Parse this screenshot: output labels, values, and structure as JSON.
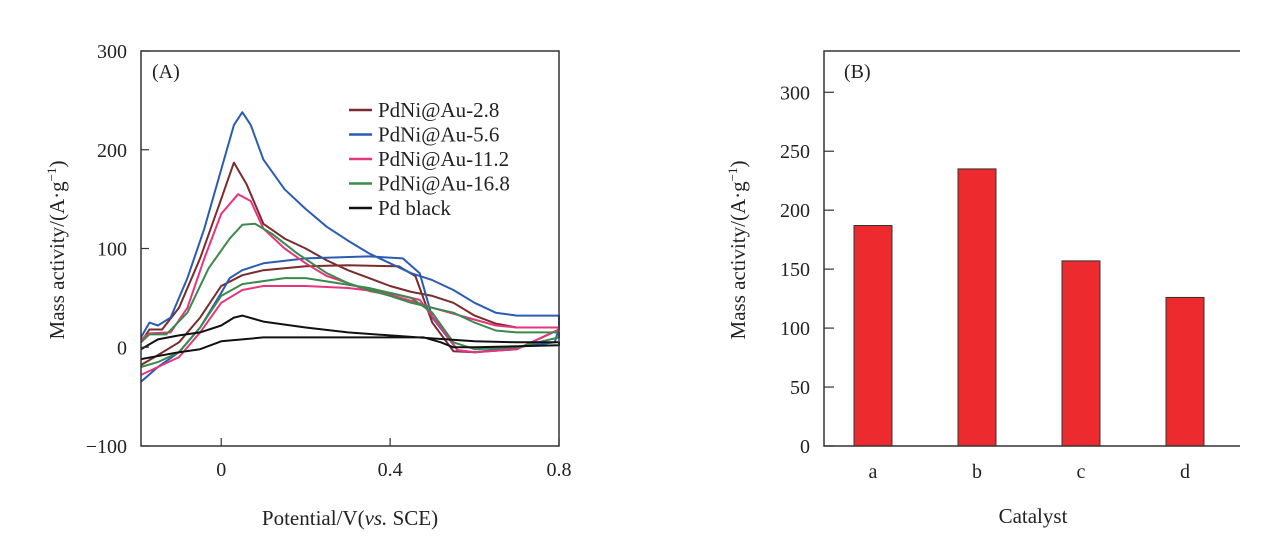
{
  "chart_data": [
    {
      "type": "line",
      "panel_label": "(A)",
      "xlabel": {
        "prefix": "Potential/V(",
        "italic": "vs.",
        "suffix": " SCE)"
      },
      "ylabel": {
        "prefix": "Mass activity/(A·g",
        "sup": "−1",
        "suffix": ")"
      },
      "xlim": [
        -0.19,
        0.8
      ],
      "ylim": [
        -100,
        300
      ],
      "xticks": [
        {
          "v": 0,
          "label": "0"
        },
        {
          "v": 0.4,
          "label": "0.4"
        },
        {
          "v": 0.8,
          "label": "0.8"
        }
      ],
      "yticks": [
        {
          "v": 300,
          "label": "300"
        },
        {
          "v": 200,
          "label": "200"
        },
        {
          "v": 100,
          "label": "100"
        },
        {
          "v": 0,
          "label": "0"
        },
        {
          "v": -100,
          "label": "−100"
        }
      ],
      "grid": false,
      "legend": "top-right",
      "series": [
        {
          "name": "PdNi@Au-2.8",
          "color": "#7a2b2b",
          "points": [
            [
              -0.19,
              5
            ],
            [
              -0.17,
              18
            ],
            [
              -0.14,
              18
            ],
            [
              -0.1,
              40
            ],
            [
              -0.05,
              90
            ],
            [
              0,
              150
            ],
            [
              0.03,
              187
            ],
            [
              0.06,
              165
            ],
            [
              0.1,
              125
            ],
            [
              0.15,
              110
            ],
            [
              0.2,
              100
            ],
            [
              0.25,
              88
            ],
            [
              0.3,
              78
            ],
            [
              0.35,
              70
            ],
            [
              0.4,
              62
            ],
            [
              0.45,
              56
            ],
            [
              0.5,
              52
            ],
            [
              0.55,
              45
            ],
            [
              0.6,
              32
            ],
            [
              0.65,
              24
            ],
            [
              0.7,
              20
            ],
            [
              0.8,
              20
            ],
            [
              0.8,
              18
            ],
            [
              0.7,
              -2
            ],
            [
              0.6,
              -5
            ],
            [
              0.55,
              -4
            ],
            [
              0.5,
              25
            ],
            [
              0.46,
              72
            ],
            [
              0.42,
              82
            ],
            [
              0.3,
              83
            ],
            [
              0.2,
              82
            ],
            [
              0.1,
              78
            ],
            [
              0.05,
              73
            ],
            [
              0,
              62
            ],
            [
              -0.05,
              30
            ],
            [
              -0.1,
              5
            ],
            [
              -0.15,
              -8
            ],
            [
              -0.19,
              -18
            ]
          ]
        },
        {
          "name": "PdNi@Au-5.6",
          "color": "#2b5cb3",
          "points": [
            [
              -0.19,
              10
            ],
            [
              -0.17,
              25
            ],
            [
              -0.15,
              22
            ],
            [
              -0.12,
              30
            ],
            [
              -0.08,
              70
            ],
            [
              -0.04,
              120
            ],
            [
              0,
              180
            ],
            [
              0.03,
              225
            ],
            [
              0.05,
              238
            ],
            [
              0.07,
              225
            ],
            [
              0.1,
              190
            ],
            [
              0.15,
              160
            ],
            [
              0.2,
              140
            ],
            [
              0.25,
              122
            ],
            [
              0.3,
              108
            ],
            [
              0.35,
              95
            ],
            [
              0.4,
              85
            ],
            [
              0.45,
              75
            ],
            [
              0.5,
              68
            ],
            [
              0.55,
              58
            ],
            [
              0.6,
              45
            ],
            [
              0.65,
              35
            ],
            [
              0.7,
              32
            ],
            [
              0.8,
              32
            ],
            [
              0.8,
              20
            ],
            [
              0.79,
              5
            ],
            [
              0.7,
              0
            ],
            [
              0.6,
              -5
            ],
            [
              0.56,
              -3
            ],
            [
              0.5,
              30
            ],
            [
              0.47,
              75
            ],
            [
              0.43,
              90
            ],
            [
              0.35,
              92
            ],
            [
              0.2,
              90
            ],
            [
              0.1,
              85
            ],
            [
              0.05,
              78
            ],
            [
              0.02,
              70
            ],
            [
              0,
              55
            ],
            [
              -0.05,
              20
            ],
            [
              -0.1,
              -5
            ],
            [
              -0.15,
              -20
            ],
            [
              -0.19,
              -35
            ]
          ]
        },
        {
          "name": "PdNi@Au-11.2",
          "color": "#e8347e",
          "points": [
            [
              -0.19,
              8
            ],
            [
              -0.17,
              14
            ],
            [
              -0.12,
              15
            ],
            [
              -0.08,
              40
            ],
            [
              -0.04,
              90
            ],
            [
              0,
              135
            ],
            [
              0.04,
              155
            ],
            [
              0.07,
              148
            ],
            [
              0.1,
              120
            ],
            [
              0.15,
              100
            ],
            [
              0.2,
              85
            ],
            [
              0.25,
              72
            ],
            [
              0.3,
              65
            ],
            [
              0.35,
              57
            ],
            [
              0.4,
              53
            ],
            [
              0.45,
              47
            ],
            [
              0.5,
              40
            ],
            [
              0.55,
              34
            ],
            [
              0.6,
              28
            ],
            [
              0.65,
              22
            ],
            [
              0.7,
              20
            ],
            [
              0.8,
              20
            ],
            [
              0.8,
              18
            ],
            [
              0.7,
              -2
            ],
            [
              0.6,
              -5
            ],
            [
              0.56,
              -3
            ],
            [
              0.52,
              20
            ],
            [
              0.47,
              48
            ],
            [
              0.4,
              55
            ],
            [
              0.3,
              60
            ],
            [
              0.2,
              62
            ],
            [
              0.1,
              62
            ],
            [
              0.05,
              58
            ],
            [
              0,
              45
            ],
            [
              -0.05,
              15
            ],
            [
              -0.1,
              -10
            ],
            [
              -0.15,
              -20
            ],
            [
              -0.19,
              -28
            ]
          ]
        },
        {
          "name": "PdNi@Au-16.8",
          "color": "#3b8a4c",
          "points": [
            [
              -0.19,
              5
            ],
            [
              -0.17,
              13
            ],
            [
              -0.13,
              13
            ],
            [
              -0.08,
              35
            ],
            [
              -0.03,
              80
            ],
            [
              0.02,
              110
            ],
            [
              0.05,
              124
            ],
            [
              0.08,
              125
            ],
            [
              0.12,
              115
            ],
            [
              0.18,
              95
            ],
            [
              0.25,
              75
            ],
            [
              0.3,
              65
            ],
            [
              0.35,
              58
            ],
            [
              0.4,
              52
            ],
            [
              0.45,
              45
            ],
            [
              0.5,
              40
            ],
            [
              0.55,
              35
            ],
            [
              0.6,
              25
            ],
            [
              0.65,
              17
            ],
            [
              0.7,
              15
            ],
            [
              0.8,
              15
            ],
            [
              0.8,
              10
            ],
            [
              0.7,
              0
            ],
            [
              0.6,
              -2
            ],
            [
              0.55,
              5
            ],
            [
              0.5,
              35
            ],
            [
              0.45,
              50
            ],
            [
              0.35,
              60
            ],
            [
              0.2,
              70
            ],
            [
              0.15,
              70
            ],
            [
              0.05,
              64
            ],
            [
              0,
              52
            ],
            [
              -0.05,
              20
            ],
            [
              -0.1,
              -5
            ],
            [
              -0.15,
              -15
            ],
            [
              -0.19,
              -20
            ]
          ]
        },
        {
          "name": "Pd black",
          "color": "#111111",
          "points": [
            [
              -0.19,
              -2
            ],
            [
              -0.15,
              8
            ],
            [
              -0.1,
              12
            ],
            [
              -0.05,
              15
            ],
            [
              0,
              22
            ],
            [
              0.03,
              30
            ],
            [
              0.05,
              32
            ],
            [
              0.1,
              26
            ],
            [
              0.2,
              20
            ],
            [
              0.3,
              15
            ],
            [
              0.4,
              12
            ],
            [
              0.5,
              9
            ],
            [
              0.6,
              6
            ],
            [
              0.7,
              5
            ],
            [
              0.8,
              5
            ],
            [
              0.8,
              2
            ],
            [
              0.6,
              0
            ],
            [
              0.55,
              0
            ],
            [
              0.52,
              5
            ],
            [
              0.48,
              10
            ],
            [
              0.4,
              10
            ],
            [
              0.2,
              10
            ],
            [
              0.1,
              10
            ],
            [
              0.05,
              8
            ],
            [
              0,
              6
            ],
            [
              -0.05,
              -2
            ],
            [
              -0.1,
              -5
            ],
            [
              -0.19,
              -12
            ]
          ]
        }
      ]
    },
    {
      "type": "bar",
      "panel_label": "(B)",
      "xlabel": "Catalyst",
      "ylabel": {
        "prefix": "Mass activity/(A·g",
        "sup": "−1",
        "suffix": ")"
      },
      "categories": [
        "a",
        "b",
        "c",
        "d"
      ],
      "values": [
        187,
        235,
        157,
        126
      ],
      "ylim": [
        0,
        335
      ],
      "yticks": [
        {
          "v": 0,
          "label": "0"
        },
        {
          "v": 50,
          "label": "50"
        },
        {
          "v": 100,
          "label": "100"
        },
        {
          "v": 150,
          "label": "150"
        },
        {
          "v": 200,
          "label": "200"
        },
        {
          "v": 250,
          "label": "250"
        },
        {
          "v": 300,
          "label": "300"
        }
      ],
      "bar_color": "#ed2a2e",
      "grid": false
    }
  ]
}
